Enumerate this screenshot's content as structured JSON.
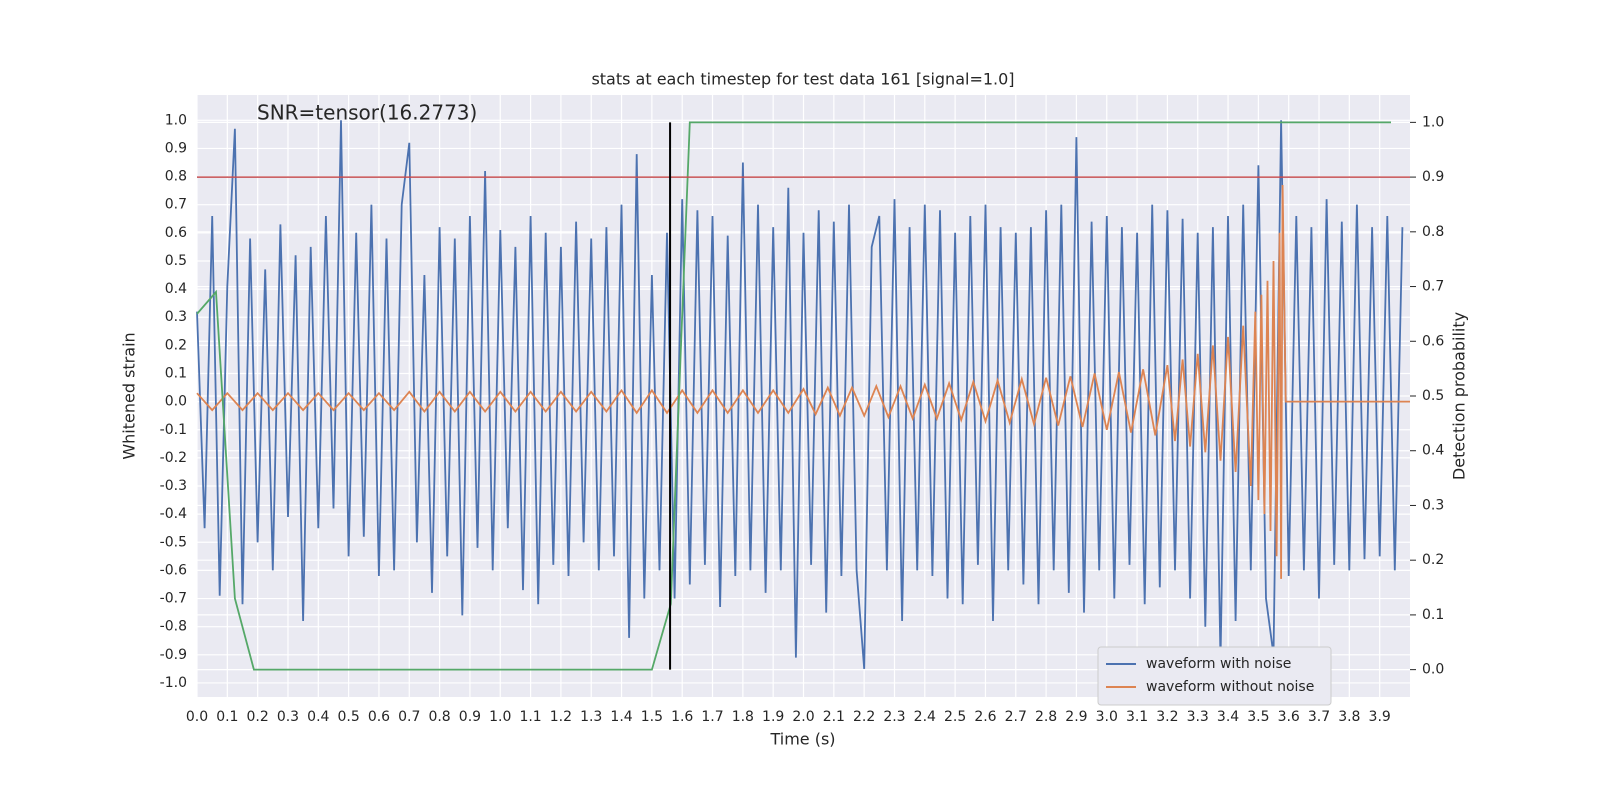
{
  "chart_data": {
    "type": "line",
    "title": "stats at each timestep for test data 161 [signal=1.0]",
    "annotation": "SNR=tensor(16.2773)",
    "xlabel": "Time (s)",
    "ylabel": "Whitened strain",
    "y2label": "Detection probability",
    "xlim": [
      0,
      4.0
    ],
    "ylim": [
      -1.05,
      1.09
    ],
    "y2lim": [
      -0.05,
      1.05
    ],
    "xticks": [
      {
        "value": 0,
        "label": "0.0"
      },
      0.1,
      0.2,
      0.3,
      0.4,
      0.5,
      0.6,
      0.7,
      0.8,
      0.9,
      {
        "value": 1,
        "label": "1.0"
      },
      1.1,
      1.2,
      1.3,
      1.4,
      1.5,
      1.6,
      1.7,
      1.8,
      1.9,
      {
        "value": 2,
        "label": "2.0"
      },
      2.1,
      2.2,
      2.3,
      2.4,
      2.5,
      2.6,
      2.7,
      2.8,
      2.9,
      {
        "value": 3,
        "label": "3.0"
      },
      3.1,
      3.2,
      3.3,
      3.4,
      3.5,
      3.6,
      3.7,
      3.8,
      3.9
    ],
    "yticks": [
      {
        "value": -1,
        "label": "-1.0"
      },
      -0.9,
      -0.8,
      -0.7,
      -0.6,
      -0.5,
      -0.4,
      -0.3,
      -0.2,
      -0.1,
      {
        "value": 0,
        "label": "0.0"
      },
      0.1,
      0.2,
      0.3,
      0.4,
      0.5,
      0.6,
      0.7,
      0.8,
      0.9,
      {
        "value": 1,
        "label": "1.0"
      }
    ],
    "y2ticks": [
      {
        "value": 0,
        "label": "0.0"
      },
      0.1,
      0.2,
      0.3,
      0.4,
      0.5,
      0.6,
      0.7,
      0.8,
      0.9,
      {
        "value": 1,
        "label": "1.0"
      }
    ],
    "grid": true,
    "legend": "lower right",
    "series": [
      {
        "name": "waveform with noise",
        "color": "#4c72b0",
        "x": [
          0,
          0.025,
          0.05,
          0.075,
          0.1,
          0.125,
          0.15,
          0.175,
          0.2,
          0.225,
          0.25,
          0.275,
          0.3,
          0.325,
          0.35,
          0.375,
          0.4,
          0.425,
          0.45,
          0.475,
          0.5,
          0.525,
          0.55,
          0.575,
          0.6,
          0.625,
          0.65,
          0.675,
          0.7,
          0.725,
          0.75,
          0.775,
          0.8,
          0.825,
          0.85,
          0.875,
          0.9,
          0.925,
          0.95,
          0.975,
          1,
          1.025,
          1.05,
          1.075,
          1.1,
          1.125,
          1.15,
          1.175,
          1.2,
          1.225,
          1.25,
          1.275,
          1.3,
          1.325,
          1.35,
          1.375,
          1.4,
          1.425,
          1.45,
          1.475,
          1.5,
          1.525,
          1.55,
          1.575,
          1.6,
          1.625,
          1.65,
          1.675,
          1.7,
          1.725,
          1.75,
          1.775,
          1.8,
          1.825,
          1.85,
          1.875,
          1.9,
          1.925,
          1.95,
          1.975,
          2,
          2.025,
          2.05,
          2.075,
          2.1,
          2.125,
          2.15,
          2.175,
          2.2,
          2.225,
          2.25,
          2.275,
          2.3,
          2.325,
          2.35,
          2.375,
          2.4,
          2.425,
          2.45,
          2.475,
          2.5,
          2.525,
          2.55,
          2.575,
          2.6,
          2.625,
          2.65,
          2.675,
          2.7,
          2.725,
          2.75,
          2.775,
          2.8,
          2.825,
          2.85,
          2.875,
          2.9,
          2.925,
          2.95,
          2.975,
          3,
          3.025,
          3.05,
          3.075,
          3.1,
          3.125,
          3.15,
          3.175,
          3.2,
          3.225,
          3.25,
          3.275,
          3.3,
          3.325,
          3.35,
          3.375,
          3.4,
          3.425,
          3.45,
          3.475,
          3.5,
          3.525,
          3.55,
          3.575,
          3.6,
          3.625,
          3.65,
          3.675,
          3.7,
          3.725,
          3.75,
          3.775,
          3.8,
          3.825,
          3.85,
          3.875,
          3.9,
          3.925,
          3.95,
          3.975
        ],
        "values": [
          0.32,
          -0.45,
          0.66,
          -0.69,
          0.41,
          0.97,
          -0.72,
          0.58,
          -0.5,
          0.47,
          -0.6,
          0.63,
          -0.41,
          0.52,
          -0.78,
          0.55,
          -0.45,
          0.66,
          -0.38,
          1.0,
          -0.55,
          0.6,
          -0.48,
          0.7,
          -0.62,
          0.58,
          -0.6,
          0.7,
          0.92,
          -0.5,
          0.45,
          -0.68,
          0.62,
          -0.55,
          0.58,
          -0.76,
          0.66,
          -0.52,
          0.82,
          -0.6,
          0.61,
          -0.45,
          0.55,
          -0.67,
          0.66,
          -0.72,
          0.6,
          -0.58,
          0.55,
          -0.62,
          0.64,
          -0.5,
          0.58,
          -0.6,
          0.62,
          -0.55,
          0.7,
          -0.84,
          0.88,
          -0.7,
          0.45,
          -0.6,
          0.6,
          -0.7,
          0.72,
          -0.65,
          0.68,
          -0.58,
          0.66,
          -0.73,
          0.59,
          -0.62,
          0.85,
          -0.6,
          0.7,
          -0.68,
          0.62,
          -0.6,
          0.76,
          -0.91,
          0.6,
          -0.58,
          0.68,
          -0.75,
          0.64,
          -0.62,
          0.7,
          -0.6,
          -0.95,
          0.55,
          0.66,
          -0.6,
          0.72,
          -0.78,
          0.62,
          -0.6,
          0.7,
          -0.62,
          0.68,
          -0.7,
          0.6,
          -0.72,
          0.66,
          -0.58,
          0.7,
          -0.78,
          0.62,
          -0.6,
          0.6,
          -0.65,
          0.62,
          -0.72,
          0.68,
          -0.6,
          0.7,
          -0.68,
          0.94,
          -0.75,
          0.64,
          -0.6,
          0.66,
          -0.7,
          0.62,
          -0.58,
          0.6,
          -0.72,
          0.7,
          -0.66,
          0.68,
          -0.6,
          0.65,
          -0.7,
          0.6,
          -0.8,
          0.62,
          -0.92,
          0.66,
          -0.78,
          0.7,
          -0.6,
          0.84,
          -0.7,
          -0.9,
          1.0,
          -0.62,
          0.66,
          -0.6,
          0.62,
          -0.7,
          0.72,
          -0.58,
          0.64,
          -0.6,
          0.7,
          -0.56,
          0.62,
          -0.55,
          0.66,
          -0.6,
          0.62
        ]
      },
      {
        "name": "waveform without noise",
        "color": "#dd8452",
        "x": [
          0,
          0.05,
          0.1,
          0.15,
          0.2,
          0.25,
          0.3,
          0.35,
          0.4,
          0.45,
          0.5,
          0.55,
          0.6,
          0.65,
          0.7,
          0.75,
          0.8,
          0.85,
          0.9,
          0.95,
          1.0,
          1.05,
          1.1,
          1.15,
          1.2,
          1.25,
          1.3,
          1.35,
          1.4,
          1.45,
          1.5,
          1.55,
          1.6,
          1.65,
          1.7,
          1.75,
          1.8,
          1.85,
          1.9,
          1.95,
          2.0,
          2.04,
          2.08,
          2.12,
          2.16,
          2.2,
          2.24,
          2.28,
          2.32,
          2.36,
          2.4,
          2.44,
          2.48,
          2.52,
          2.56,
          2.6,
          2.64,
          2.68,
          2.72,
          2.76,
          2.8,
          2.84,
          2.88,
          2.92,
          2.96,
          3.0,
          3.04,
          3.08,
          3.12,
          3.16,
          3.2,
          3.225,
          3.25,
          3.275,
          3.3,
          3.325,
          3.35,
          3.375,
          3.4,
          3.425,
          3.45,
          3.475,
          3.49,
          3.5,
          3.51,
          3.52,
          3.53,
          3.54,
          3.55,
          3.56,
          3.57,
          3.575,
          3.58,
          3.59,
          3.6,
          4.0
        ],
        "values": [
          0.03,
          -0.03,
          0.03,
          -0.03,
          0.03,
          -0.03,
          0.03,
          -0.03,
          0.03,
          -0.03,
          0.03,
          -0.03,
          0.03,
          -0.03,
          0.035,
          -0.035,
          0.035,
          -0.035,
          0.035,
          -0.035,
          0.035,
          -0.035,
          0.035,
          -0.035,
          0.035,
          -0.035,
          0.035,
          -0.035,
          0.04,
          -0.04,
          0.04,
          -0.04,
          0.04,
          -0.04,
          0.04,
          -0.04,
          0.04,
          -0.04,
          0.04,
          -0.04,
          0.045,
          -0.045,
          0.05,
          -0.05,
          0.05,
          -0.05,
          0.055,
          -0.055,
          0.055,
          -0.06,
          0.06,
          -0.06,
          0.065,
          -0.065,
          0.07,
          -0.07,
          0.075,
          -0.075,
          0.08,
          -0.08,
          0.085,
          -0.085,
          0.09,
          -0.09,
          0.1,
          -0.1,
          0.105,
          -0.11,
          0.115,
          -0.12,
          0.13,
          -0.14,
          0.15,
          -0.16,
          0.17,
          -0.18,
          0.2,
          -0.21,
          0.23,
          -0.25,
          0.27,
          -0.3,
          0.32,
          -0.35,
          0.38,
          -0.4,
          0.43,
          -0.46,
          0.5,
          -0.55,
          0.6,
          -0.63,
          0.77,
          0,
          0,
          0
        ]
      },
      {
        "color": "#55a868",
        "axis": "y2",
        "x": [
          0,
          0.0625,
          0.125,
          0.1875,
          1.5,
          1.5625,
          1.625,
          3.9375
        ],
        "values": [
          0.65,
          0.69,
          0.13,
          0,
          0,
          0.12,
          1,
          1
        ]
      }
    ],
    "hlines": [
      {
        "value": 0.9,
        "axis": "y2",
        "color": "#c44e52"
      }
    ],
    "vlines": [
      {
        "x": 1.56,
        "ymin": 0,
        "ymax": 1,
        "axis": "y2",
        "color": "#000000"
      }
    ]
  }
}
